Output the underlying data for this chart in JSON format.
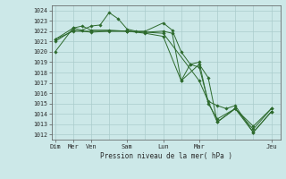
{
  "background_color": "#cce8e8",
  "grid_color": "#aacccc",
  "line_color": "#2d6a2d",
  "marker_color": "#2d6a2d",
  "ylabel_values": [
    1012,
    1013,
    1014,
    1015,
    1016,
    1017,
    1018,
    1019,
    1020,
    1021,
    1022,
    1023,
    1024
  ],
  "ylim": [
    1011.5,
    1024.5
  ],
  "xlabel": "Pression niveau de la mer( hPa )",
  "major_xtick_labels": [
    "Dim",
    "Mer",
    "Ven",
    "Sam",
    "Lun",
    "Mar",
    "Jeu"
  ],
  "major_xtick_positions": [
    0,
    1,
    2,
    4,
    6,
    8,
    12
  ],
  "xlim": [
    -0.2,
    12.5
  ],
  "series": [
    {
      "x": [
        0,
        1,
        1.5,
        2,
        2.5,
        3.0,
        3.5,
        4.0,
        4.5,
        5.0,
        6.0,
        6.5,
        7.0,
        7.5,
        8.0,
        8.5,
        9.0,
        9.5,
        10.0,
        11.0,
        12.0
      ],
      "y": [
        1020.0,
        1022.3,
        1022.1,
        1022.5,
        1022.6,
        1023.8,
        1023.2,
        1022.2,
        1022.0,
        1022.0,
        1022.8,
        1022.1,
        1020.0,
        1018.8,
        1018.5,
        1015.2,
        1014.8,
        1014.5,
        1014.8,
        1012.2,
        1014.2
      ]
    },
    {
      "x": [
        0,
        1,
        1.5,
        2,
        3,
        4,
        5,
        6,
        6.5,
        7,
        7.5,
        8,
        8.5,
        9,
        10,
        11,
        12
      ],
      "y": [
        1021.2,
        1022.3,
        1022.5,
        1022.1,
        1022.1,
        1022.0,
        1021.9,
        1022.0,
        1021.8,
        1017.2,
        1018.8,
        1019.0,
        1015.0,
        1013.5,
        1014.5,
        1012.8,
        1014.5
      ]
    },
    {
      "x": [
        0,
        1,
        2,
        3,
        4,
        5,
        6,
        7,
        8,
        8.5,
        9,
        10,
        11,
        12
      ],
      "y": [
        1021.0,
        1022.1,
        1021.9,
        1022.0,
        1022.0,
        1021.8,
        1021.5,
        1017.2,
        1018.8,
        1017.5,
        1013.2,
        1014.5,
        1012.5,
        1014.5
      ]
    },
    {
      "x": [
        0,
        1,
        2,
        4,
        6,
        8,
        9,
        10,
        11,
        12
      ],
      "y": [
        1021.2,
        1022.0,
        1022.0,
        1022.0,
        1021.8,
        1017.2,
        1013.2,
        1014.5,
        1012.2,
        1014.2
      ]
    }
  ]
}
